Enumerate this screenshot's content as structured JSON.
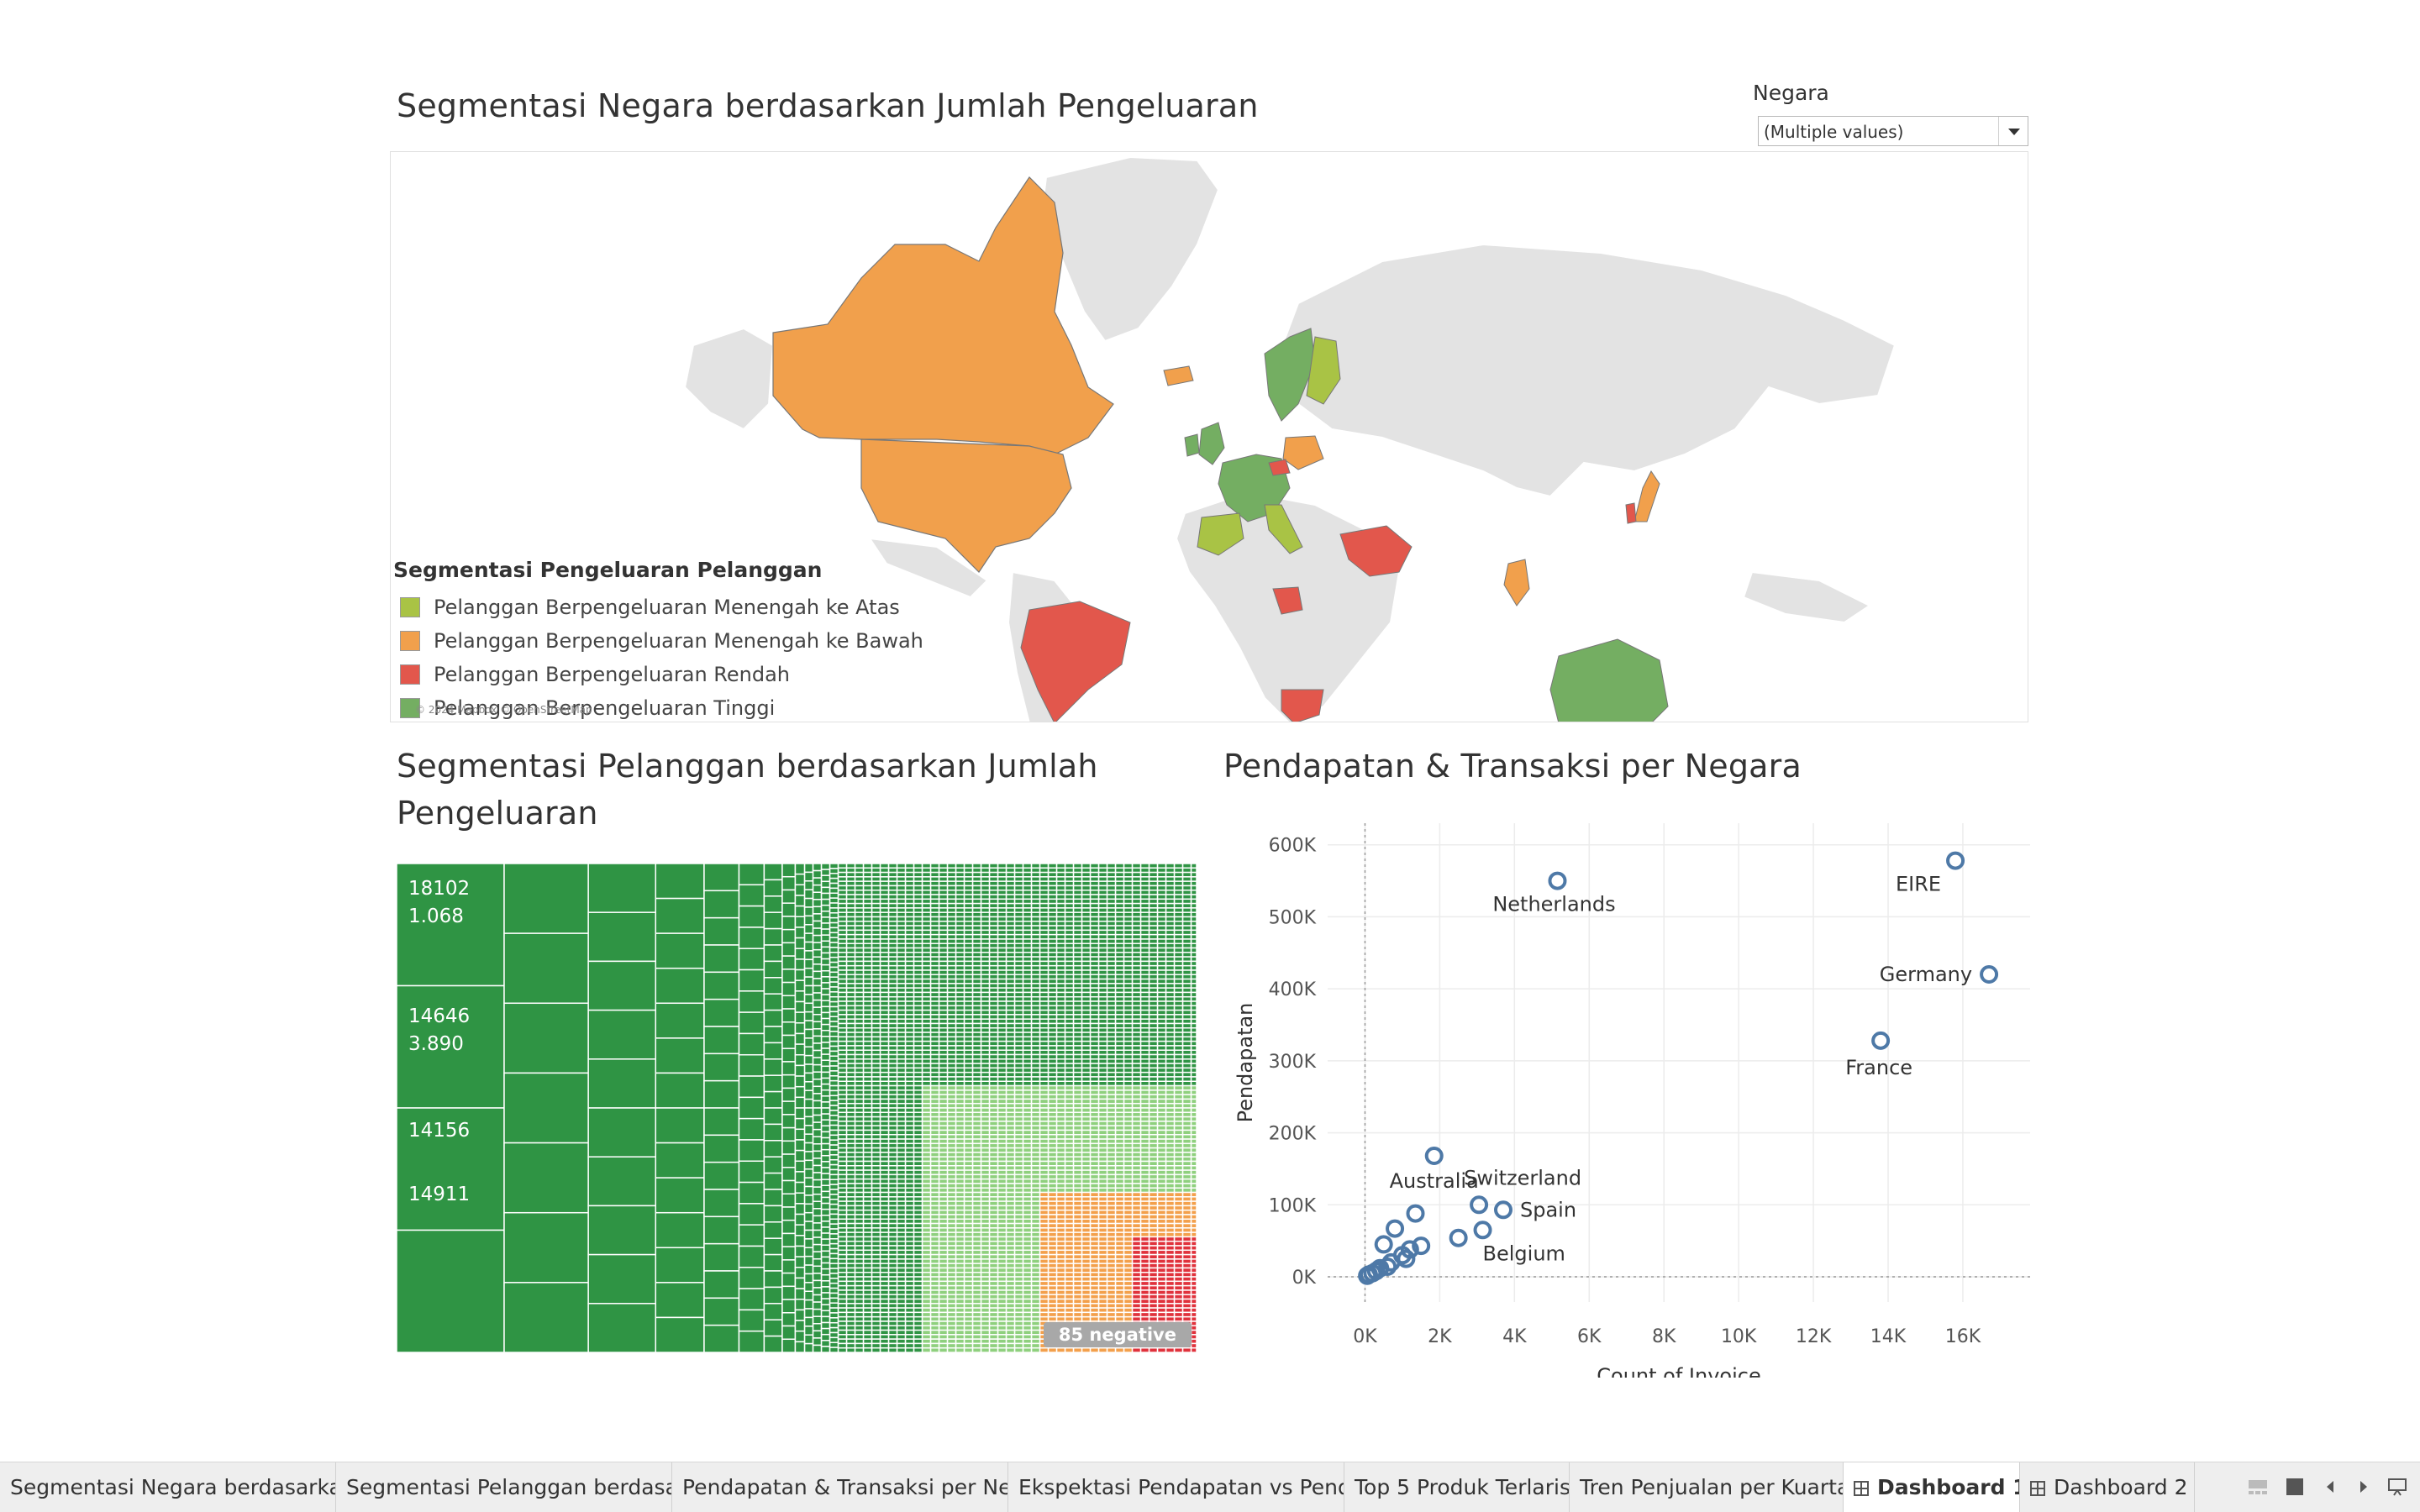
{
  "map_section": {
    "title": "Segmentasi Negara berdasarkan Jumlah Pengeluaran",
    "filter": {
      "label": "Negara",
      "value": "(Multiple values)"
    },
    "legend": {
      "title": "Segmentasi Pengeluaran Pelanggan",
      "items": [
        {
          "label": "Pelanggan Berpengeluaran Menengah ke Atas",
          "color": "#a9c345"
        },
        {
          "label": "Pelanggan Berpengeluaran Menengah ke Bawah",
          "color": "#f1a04c"
        },
        {
          "label": "Pelanggan Berpengeluaran Rendah",
          "color": "#e2574c"
        },
        {
          "label": "Pelanggan Berpengeluaran Tinggi",
          "color": "#74ae62"
        }
      ]
    },
    "attribution": "© 2024 Mapbox © OpenStreetMap"
  },
  "treemap_section": {
    "title_line1": "Segmentasi Pelanggan berdasarkan Jumlah",
    "title_line2": "Pengeluaran",
    "labels": [
      {
        "id": "18102",
        "value": "1.068"
      },
      {
        "id": "14646",
        "value": "3.890"
      },
      {
        "id": "14156",
        "value": ""
      },
      {
        "id": "14911",
        "value": ""
      }
    ],
    "badge": "85 negative",
    "colors": {
      "dark": "#2f9444",
      "light": "#8fd07e",
      "orange": "#f3a04c",
      "red": "#e0323c"
    }
  },
  "scatter_section": {
    "title": "Pendapatan & Transaksi per Negara",
    "point_color": "#4e79a7"
  },
  "chart_data": {
    "type": "scatter",
    "xlabel": "Count of Invoice",
    "ylabel": "Pendapatan",
    "xlim": [
      -1000,
      17800
    ],
    "ylim": [
      -35000,
      630000
    ],
    "xticks": [
      0,
      2000,
      4000,
      6000,
      8000,
      10000,
      12000,
      14000,
      16000
    ],
    "xtick_labels": [
      "0K",
      "2K",
      "4K",
      "6K",
      "8K",
      "10K",
      "12K",
      "14K",
      "16K"
    ],
    "yticks": [
      0,
      100000,
      200000,
      300000,
      400000,
      500000,
      600000
    ],
    "ytick_labels": [
      "0K",
      "100K",
      "200K",
      "300K",
      "400K",
      "500K",
      "600K"
    ],
    "points": [
      {
        "label": "Netherlands",
        "x": 5150,
        "y": 550000
      },
      {
        "label": "EIRE",
        "x": 15800,
        "y": 578000
      },
      {
        "label": "Germany",
        "x": 16700,
        "y": 420000
      },
      {
        "label": "France",
        "x": 13800,
        "y": 328000
      },
      {
        "label": "Australia",
        "x": 1850,
        "y": 168000
      },
      {
        "label": "Switzerland",
        "x": 3050,
        "y": 100000
      },
      {
        "label": "Spain",
        "x": 3700,
        "y": 93000
      },
      {
        "label": "Belgium",
        "x": 3150,
        "y": 65000
      },
      {
        "label": "",
        "x": 1350,
        "y": 88000
      },
      {
        "label": "",
        "x": 800,
        "y": 67000
      },
      {
        "label": "",
        "x": 2500,
        "y": 54000
      },
      {
        "label": "",
        "x": 500,
        "y": 45000
      },
      {
        "label": "",
        "x": 1500,
        "y": 43000
      },
      {
        "label": "",
        "x": 1200,
        "y": 38000
      },
      {
        "label": "",
        "x": 1000,
        "y": 30000
      },
      {
        "label": "",
        "x": 1100,
        "y": 25000
      },
      {
        "label": "",
        "x": 700,
        "y": 20000
      },
      {
        "label": "",
        "x": 600,
        "y": 14000
      },
      {
        "label": "",
        "x": 400,
        "y": 12000
      },
      {
        "label": "",
        "x": 300,
        "y": 8000
      },
      {
        "label": "",
        "x": 200,
        "y": 5000
      },
      {
        "label": "",
        "x": 100,
        "y": 3000
      },
      {
        "label": "",
        "x": 60,
        "y": 1500
      }
    ]
  },
  "tabs": [
    {
      "label": "Segmentasi Negara berdasarka...",
      "active": false
    },
    {
      "label": "Segmentasi Pelanggan berdasar...",
      "active": false
    },
    {
      "label": "Pendapatan & Transaksi per Neg...",
      "active": false
    },
    {
      "label": "Ekspektasi Pendapatan vs Pend...",
      "active": false
    },
    {
      "label": "Top 5 Produk Terlaris",
      "active": false
    },
    {
      "label": "Tren Penjualan per Kuartal",
      "active": false
    },
    {
      "label": "Dashboard 1",
      "active": true
    },
    {
      "label": "Dashboard 2",
      "active": false
    }
  ]
}
